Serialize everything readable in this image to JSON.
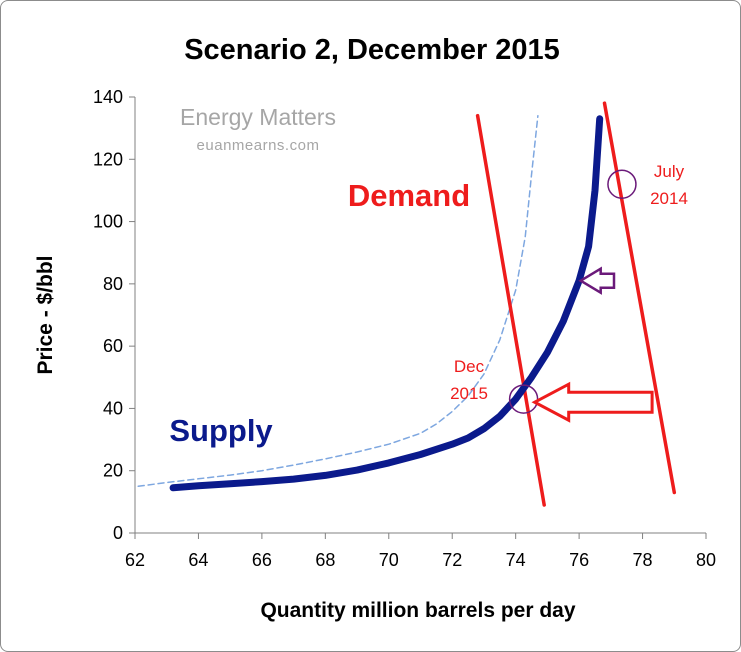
{
  "chart_data": {
    "type": "line",
    "title": "Scenario 2, December 2015",
    "xlabel": "Quantity million barrels per day",
    "ylabel": "Price - $/bbl",
    "xlim": [
      62,
      80
    ],
    "ylim": [
      0,
      140
    ],
    "x_ticks": [
      "62",
      "64",
      "66",
      "68",
      "70",
      "72",
      "74",
      "76",
      "78",
      "80"
    ],
    "y_ticks": [
      "0",
      "20",
      "40",
      "60",
      "80",
      "100",
      "120",
      "140"
    ],
    "grid": false,
    "watermark": {
      "line1": "Energy Matters",
      "line2": "euanmearns.com"
    },
    "series": [
      {
        "name": "Supply",
        "color": "#0b1a8c",
        "x": [
          63.2,
          64,
          65,
          66,
          67,
          68,
          69,
          70,
          71,
          72,
          72.5,
          73,
          73.5,
          74,
          74.5,
          75,
          75.5,
          76,
          76.3,
          76.5,
          76.65
        ],
        "y": [
          14.5,
          15.2,
          15.8,
          16.5,
          17.3,
          18.5,
          20.2,
          22.5,
          25.2,
          28.5,
          30.5,
          33.5,
          37.5,
          43,
          50,
          58,
          68,
          81,
          92,
          110,
          133
        ]
      },
      {
        "name": "",
        "style": "dashed",
        "color": "#7ea7e0",
        "x": [
          62.1,
          63,
          64,
          65,
          66,
          67,
          68,
          69,
          70,
          71,
          71.5,
          72,
          72.5,
          73,
          73.5,
          74,
          74.3,
          74.5,
          74.7
        ],
        "y": [
          15,
          16.2,
          17.4,
          18.6,
          20,
          21.8,
          23.8,
          26,
          28.5,
          32,
          35,
          39,
          44,
          51,
          62,
          78,
          95,
          115,
          134
        ]
      },
      {
        "name": "Demand",
        "color": "#ee1c1c",
        "label": "Dec 2015",
        "x": [
          72.8,
          74.9
        ],
        "y": [
          134,
          9
        ]
      },
      {
        "name": "",
        "color": "#ee1c1c",
        "label": "July 2014",
        "x": [
          76.8,
          79
        ],
        "y": [
          138,
          13
        ]
      }
    ],
    "annotations": {
      "demand_label": "Demand",
      "supply_label": "Supply",
      "dec_label_1": "Dec",
      "dec_label_2": "2015",
      "july_label_1": "July",
      "july_label_2": "2014",
      "circles": [
        {
          "x": 74.25,
          "y": 43,
          "color": "#6b1a7a"
        },
        {
          "x": 77.35,
          "y": 112,
          "color": "#6b1a7a"
        }
      ],
      "arrows": [
        {
          "from_x": 78.3,
          "to_x": 74.6,
          "y": 42,
          "color": "#ee1c1c"
        },
        {
          "from_x": 77.1,
          "to_x": 76.05,
          "y": 81,
          "color": "#6b1a7a"
        }
      ]
    }
  }
}
